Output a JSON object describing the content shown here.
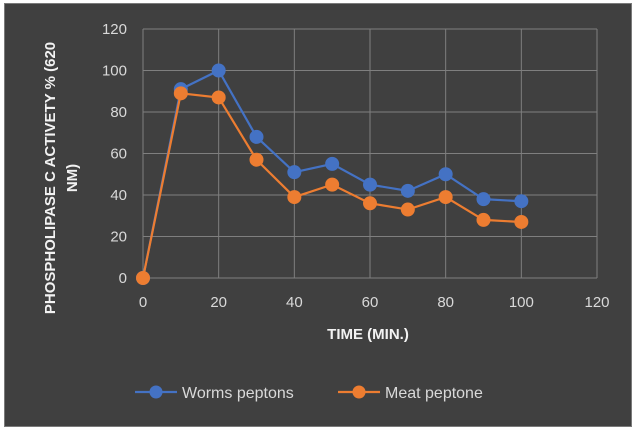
{
  "chart_data": {
    "type": "line",
    "xlabel": "TIME (MIN.)",
    "ylabel": "PHOSPHOLIPASE C ACTIVETY % (620 NM)",
    "xlim": [
      0,
      120
    ],
    "ylim": [
      0,
      120
    ],
    "x_ticks": [
      0,
      20,
      40,
      60,
      80,
      100,
      120
    ],
    "y_ticks": [
      0,
      20,
      40,
      60,
      80,
      100,
      120
    ],
    "grid": "vertical and horizontal",
    "legend_position": "bottom",
    "series": [
      {
        "name": "Worms peptons",
        "color": "#4472C4",
        "x": [
          0,
          10,
          20,
          30,
          40,
          50,
          60,
          70,
          80,
          90,
          100
        ],
        "y": [
          0,
          91,
          100,
          68,
          51,
          55,
          45,
          42,
          50,
          38,
          37
        ]
      },
      {
        "name": "Meat peptone",
        "color": "#ED7D31",
        "x": [
          0,
          10,
          20,
          30,
          40,
          50,
          60,
          70,
          80,
          90,
          100
        ],
        "y": [
          0,
          89,
          87,
          57,
          39,
          45,
          36,
          33,
          39,
          28,
          27
        ]
      }
    ]
  }
}
